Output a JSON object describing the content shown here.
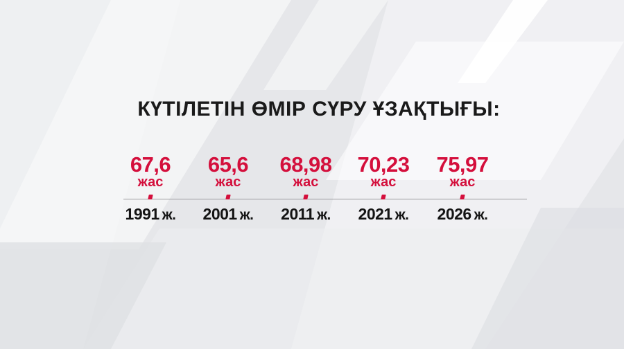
{
  "title": "КҮТІЛЕТІН ӨМІР СҮРУ ҰЗАҚТЫҒЫ:",
  "chart_data": {
    "type": "timeline",
    "title": "КҮТІЛЕТІН ӨМІР СҮРУ ҰЗАҚТЫҒЫ:",
    "categories": [
      "1991",
      "2001",
      "2011",
      "2021",
      "2026"
    ],
    "year_suffix": "ж.",
    "values": [
      67.6,
      65.6,
      68.98,
      70.23,
      75.97
    ],
    "value_labels": [
      "67,6",
      "65,6",
      "68,98",
      "70,23",
      "75,97"
    ],
    "unit": "жас",
    "colors": {
      "value": "#d40f3c",
      "year": "#141414"
    }
  }
}
